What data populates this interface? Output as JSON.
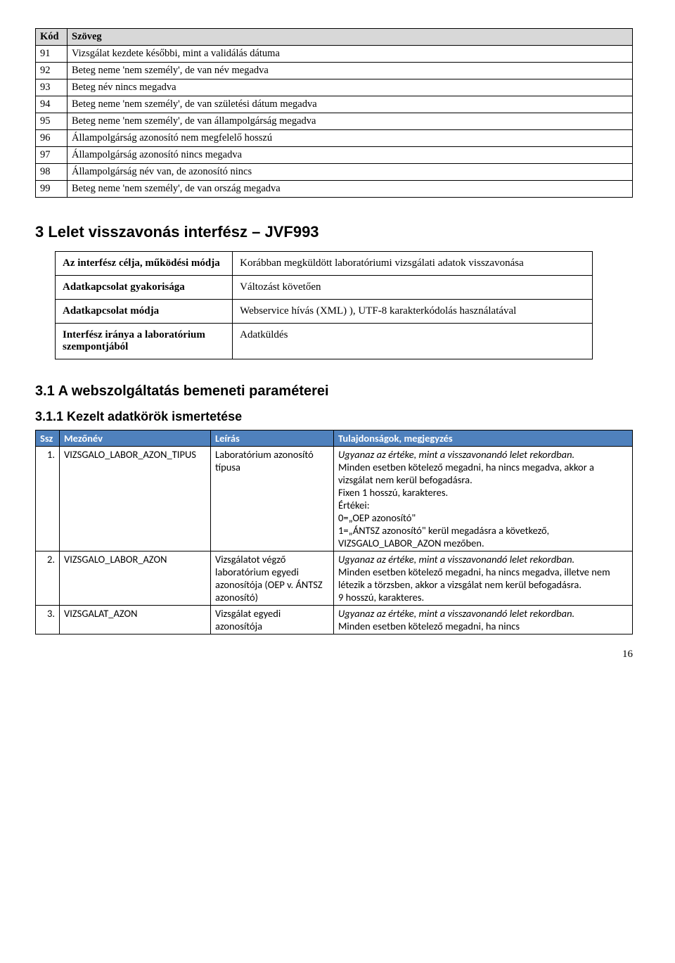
{
  "code_table": {
    "headers": [
      "Kód",
      "Szöveg"
    ],
    "rows": [
      [
        "91",
        "Vizsgálat kezdete későbbi, mint a validálás dátuma"
      ],
      [
        "92",
        "Beteg neme 'nem személy', de van név megadva"
      ],
      [
        "93",
        "Beteg név nincs megadva"
      ],
      [
        "94",
        "Beteg neme 'nem személy', de van születési dátum megadva"
      ],
      [
        "95",
        "Beteg neme 'nem személy', de van állampolgárság megadva"
      ],
      [
        "96",
        "Állampolgárság azonosító nem megfelelő hosszú"
      ],
      [
        "97",
        "Állampolgárság azonosító nincs megadva"
      ],
      [
        "98",
        "Állampolgárság név van, de azonosító nincs"
      ],
      [
        "99",
        "Beteg neme 'nem személy', de van ország megadva"
      ]
    ]
  },
  "section3": {
    "heading": "3   Lelet visszavonás interfész – JVF993",
    "interface_table": {
      "rows": [
        {
          "label": "Az interfész célja, működési módja",
          "value": "Korábban megküldött laboratóriumi vizsgálati adatok visszavonása"
        },
        {
          "label": "Adatkapcsolat gyakorisága",
          "value": "Változást követően"
        },
        {
          "label": "Adatkapcsolat módja",
          "value": "Webservice hívás (XML) ), UTF-8 karakterkódolás használatával"
        },
        {
          "label": "Interfész iránya a laboratórium szempontjából",
          "value": "Adatküldés"
        }
      ]
    }
  },
  "section31": {
    "heading": "3.1  A webszolgáltatás bemeneti paraméterei"
  },
  "section311": {
    "heading": "3.1.1 Kezelt adatkörök ismertetése",
    "headers": [
      "Ssz",
      "Mezőnév",
      "Leírás",
      "Tulajdonságok, megjegyzés"
    ],
    "rows": [
      {
        "ssz": "1.",
        "field": "VIZSGALO_LABOR_AZON_TIPUS",
        "desc": "Laboratórium azonosító típusa",
        "notes_italic": "Ugyanaz az értéke, mint a visszavonandó lelet rekordban.",
        "notes_rest": "Minden esetben kötelező megadni, ha nincs megadva, akkor a vizsgálat nem kerül befogadásra.\nFixen 1 hosszú, karakteres.\nÉrtékei:\n0=„OEP azonosító\"\n1=„ÁNTSZ azonosító\" kerül megadásra a következő, VIZSGALO_LABOR_AZON mezőben."
      },
      {
        "ssz": "2.",
        "field": "VIZSGALO_LABOR_AZON",
        "desc": "Vizsgálatot végző laboratórium egyedi azonosítója (OEP v. ÁNTSZ azonosító)",
        "notes_italic": "Ugyanaz az értéke, mint a visszavonandó lelet rekordban.",
        "notes_rest": "Minden esetben kötelező megadni, ha nincs megadva, illetve nem létezik a törzsben, akkor a vizsgálat nem kerül befogadásra.\n9 hosszú, karakteres."
      },
      {
        "ssz": "3.",
        "field": "VIZSGALAT_AZON",
        "desc": "Vizsgálat egyedi azonosítója",
        "notes_italic": "Ugyanaz az értéke, mint a visszavonandó lelet rekordban.",
        "notes_rest": "Minden esetben kötelező megadni, ha nincs"
      }
    ]
  },
  "page_number": "16"
}
